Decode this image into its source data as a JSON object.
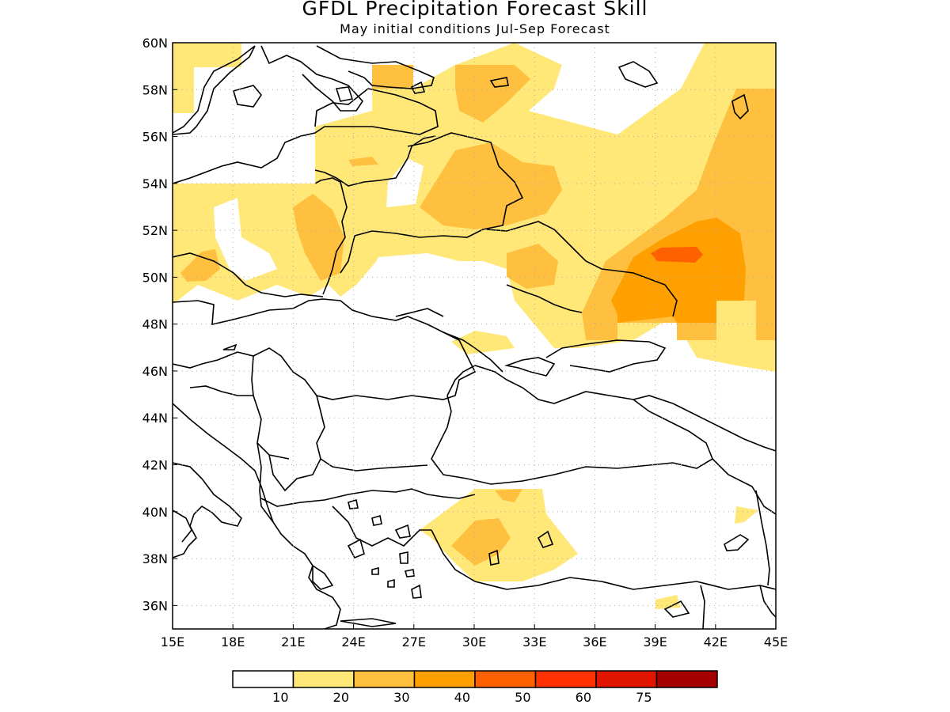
{
  "title": "GFDL Precipitation Forecast Skill",
  "subtitle": "May initial conditions  Jul-Sep Forecast",
  "map": {
    "lon_range": [
      15,
      45
    ],
    "lat_range": [
      35,
      60
    ],
    "grid": "dotted",
    "lon_ticks": [
      "15E",
      "18E",
      "21E",
      "24E",
      "27E",
      "30E",
      "33E",
      "36E",
      "39E",
      "42E",
      "45E"
    ],
    "lat_ticks": [
      "60N",
      "58N",
      "56N",
      "54N",
      "52N",
      "50N",
      "48N",
      "46N",
      "44N",
      "42N",
      "40N",
      "38N",
      "36N"
    ]
  },
  "colorbar": {
    "colors": [
      "#ffffff",
      "#ffe878",
      "#ffc040",
      "#ffa000",
      "#ff6000",
      "#ff3200",
      "#e11400",
      "#a50000"
    ],
    "labels": [
      "10",
      "20",
      "30",
      "40",
      "50",
      "60",
      "75"
    ]
  }
}
